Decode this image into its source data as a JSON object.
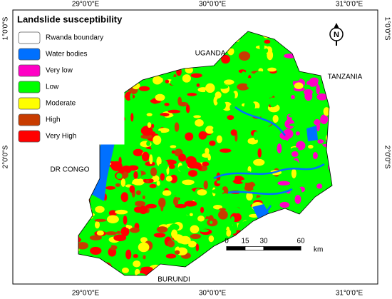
{
  "legend": {
    "title": "Landslide susceptibility",
    "items": [
      {
        "label": "Rwanda boundary",
        "color": "#ffffff"
      },
      {
        "label": "Water bodies",
        "color": "#0070ff"
      },
      {
        "label": "Very low",
        "color": "#ff00c5"
      },
      {
        "label": "Low",
        "color": "#00ff00"
      },
      {
        "label": "Moderate",
        "color": "#ffff00"
      },
      {
        "label": "High",
        "color": "#c83c00"
      },
      {
        "label": "Very High",
        "color": "#ff0000"
      }
    ]
  },
  "labels": {
    "uganda": "UGANDA",
    "tanzania": "TANZANIA",
    "dr_congo": "DR CONGO",
    "burundi": "BURUNDI"
  },
  "graticule": {
    "top": [
      "29°0'0\"E",
      "30°0'0\"E",
      "31°0'0\"E"
    ],
    "bottom": [
      "29°0'0\"E",
      "30°0'0\"E",
      "31°0'0\"E"
    ],
    "left": [
      "1°0'0\"S",
      "2°0'0\"S"
    ],
    "right": [
      "1°0'0\"S",
      "2°0'0\"S"
    ]
  },
  "north": "N",
  "scale": {
    "ticks": [
      0,
      15,
      30,
      60
    ],
    "unit": "km"
  }
}
